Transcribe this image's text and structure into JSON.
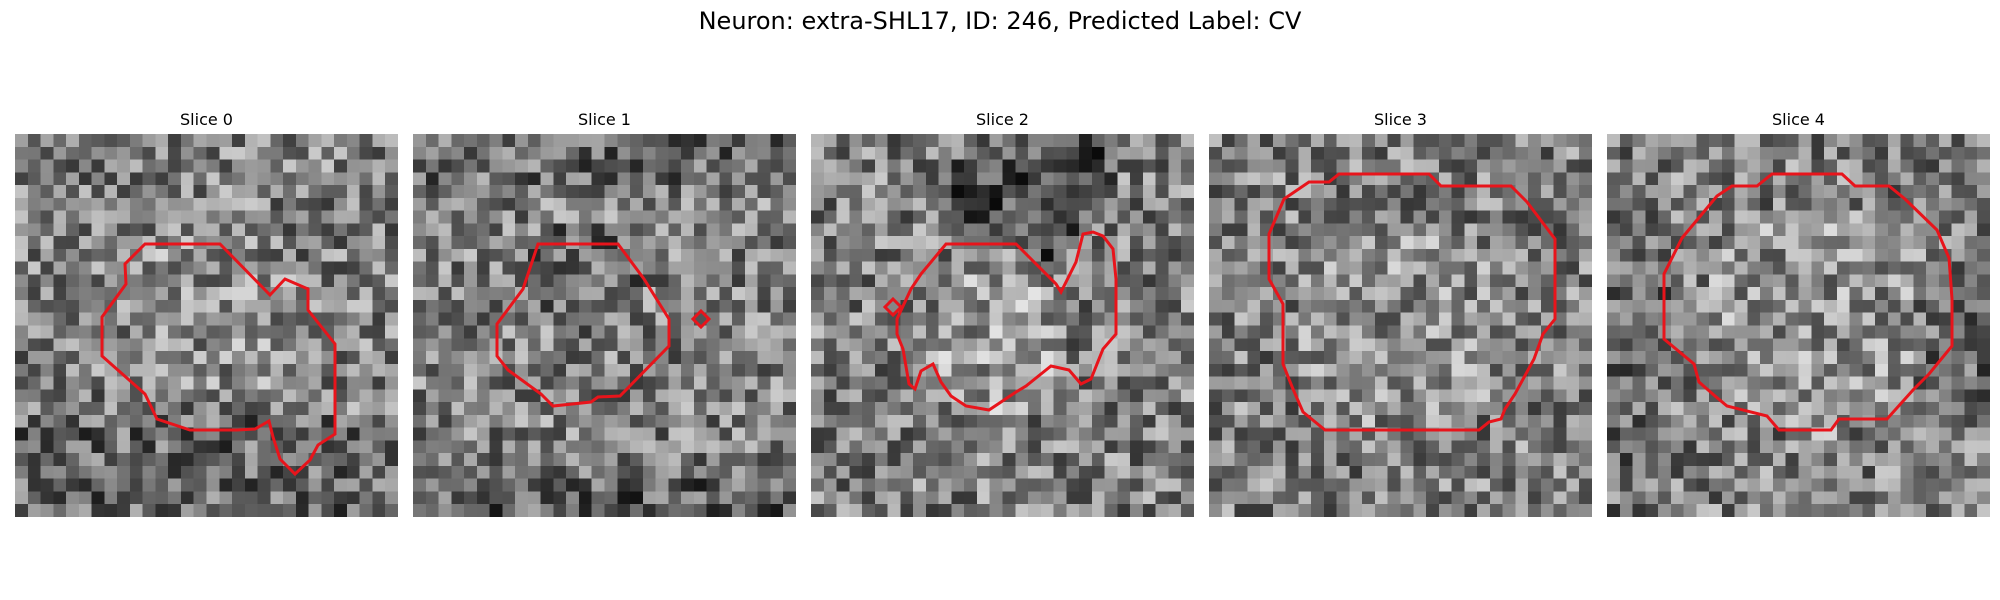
{
  "figure": {
    "title": "Neuron: extra-SHL17, ID: 246, Predicted Label: CV"
  },
  "colors": {
    "contour": "#e8141b",
    "background": "#ffffff"
  },
  "panels": [
    {
      "title": "Slice 0"
    },
    {
      "title": "Slice 1"
    },
    {
      "title": "Slice 2"
    },
    {
      "title": "Slice 3"
    },
    {
      "title": "Slice 4"
    }
  ]
}
